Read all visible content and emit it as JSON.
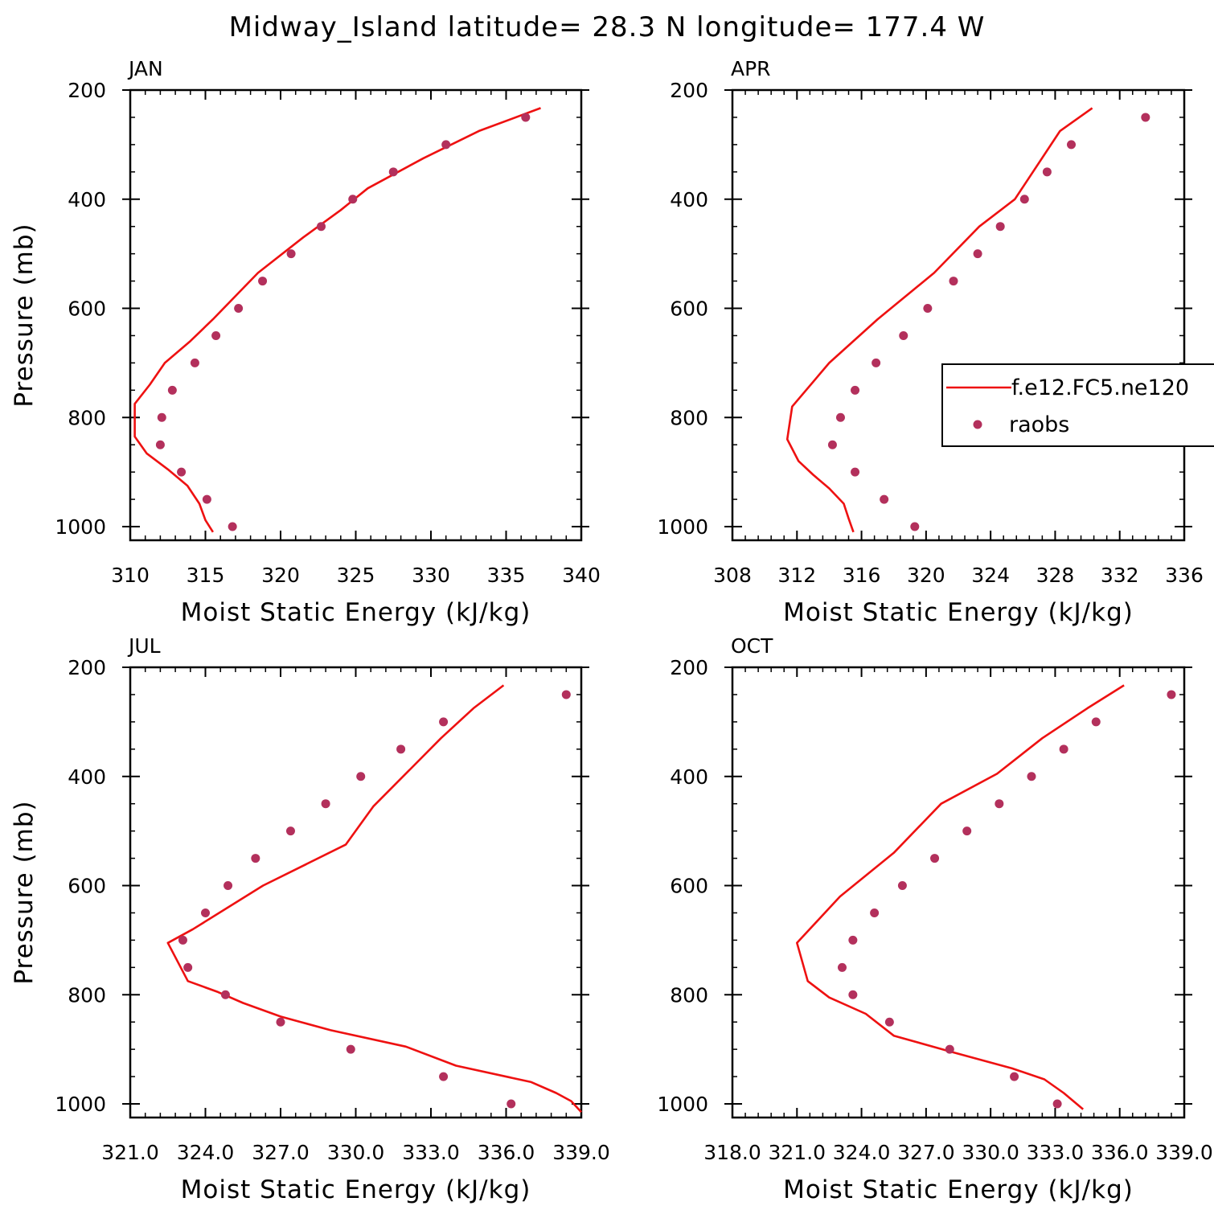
{
  "title": "Midway_Island  latitude= 28.3 N longitude= 177.4 W",
  "colors": {
    "model": "#ee1111",
    "obs": "#b3305c",
    "axis": "#000000"
  },
  "legend": {
    "model_label": "f.e12.FC5.ne120",
    "obs_label": "raobs"
  },
  "chart_data": [
    {
      "type": "line",
      "panel": "JAN",
      "xlabel": "Moist Static Energy (kJ/kg)",
      "ylabel": "Pressure (mb)",
      "xlim": [
        310,
        340
      ],
      "ylim": [
        1025,
        200
      ],
      "y_reversed": true,
      "xticks": [
        310,
        315,
        320,
        325,
        330,
        335,
        340
      ],
      "xtick_labels": [
        "310",
        "315",
        "320",
        "325",
        "330",
        "335",
        "340"
      ],
      "yticks": [
        200,
        400,
        600,
        800,
        1000
      ],
      "ytick_labels": [
        "200",
        "400",
        "600",
        "800",
        "1000"
      ],
      "series": [
        {
          "name": "f.e12.FC5.ne120",
          "kind": "line",
          "points": [
            [
              315.5,
              1010
            ],
            [
              315.0,
              988
            ],
            [
              314.6,
              958
            ],
            [
              313.8,
              925
            ],
            [
              312.5,
              895
            ],
            [
              311.1,
              866
            ],
            [
              310.3,
              835
            ],
            [
              310.3,
              805
            ],
            [
              310.3,
              775
            ],
            [
              311.3,
              740
            ],
            [
              312.3,
              700
            ],
            [
              314.0,
              660
            ],
            [
              315.5,
              620
            ],
            [
              318.5,
              535
            ],
            [
              321.5,
              470
            ],
            [
              324.0,
              420
            ],
            [
              325.8,
              380
            ],
            [
              329.5,
              325
            ],
            [
              333.2,
              275
            ],
            [
              337.3,
              233
            ]
          ]
        },
        {
          "name": "raobs",
          "kind": "scatter",
          "points": [
            [
              316.8,
              1000
            ],
            [
              315.1,
              950
            ],
            [
              313.4,
              900
            ],
            [
              312.0,
              850
            ],
            [
              312.1,
              800
            ],
            [
              312.8,
              750
            ],
            [
              314.3,
              700
            ],
            [
              315.7,
              650
            ],
            [
              317.2,
              600
            ],
            [
              318.8,
              550
            ],
            [
              320.7,
              500
            ],
            [
              322.7,
              450
            ],
            [
              324.8,
              400
            ],
            [
              327.5,
              350
            ],
            [
              331.0,
              300
            ],
            [
              336.3,
              250
            ]
          ]
        }
      ]
    },
    {
      "type": "line",
      "panel": "APR",
      "xlabel": "Moist Static Energy (kJ/kg)",
      "ylabel": "",
      "xlim": [
        308,
        336
      ],
      "ylim": [
        1025,
        200
      ],
      "y_reversed": true,
      "xticks": [
        308,
        312,
        316,
        320,
        324,
        328,
        332,
        336
      ],
      "xtick_labels": [
        "308",
        "312",
        "316",
        "320",
        "324",
        "328",
        "332",
        "336"
      ],
      "yticks": [
        200,
        400,
        600,
        800,
        1000
      ],
      "ytick_labels": [
        "200",
        "400",
        "600",
        "800",
        "1000"
      ],
      "series": [
        {
          "name": "f.e12.FC5.ne120",
          "kind": "line",
          "points": [
            [
              315.5,
              1010
            ],
            [
              315.2,
              985
            ],
            [
              314.9,
              958
            ],
            [
              314.0,
              930
            ],
            [
              313.0,
              905
            ],
            [
              312.1,
              880
            ],
            [
              311.4,
              840
            ],
            [
              311.7,
              780
            ],
            [
              314.0,
              700
            ],
            [
              317.0,
              620
            ],
            [
              320.5,
              535
            ],
            [
              323.3,
              450
            ],
            [
              325.5,
              400
            ],
            [
              328.3,
              275
            ],
            [
              330.3,
              233
            ]
          ]
        },
        {
          "name": "raobs",
          "kind": "scatter",
          "points": [
            [
              319.3,
              1000
            ],
            [
              317.4,
              950
            ],
            [
              315.6,
              900
            ],
            [
              314.2,
              850
            ],
            [
              314.7,
              800
            ],
            [
              315.6,
              750
            ],
            [
              316.9,
              700
            ],
            [
              318.6,
              650
            ],
            [
              320.1,
              600
            ],
            [
              321.7,
              550
            ],
            [
              323.2,
              500
            ],
            [
              324.6,
              450
            ],
            [
              326.1,
              400
            ],
            [
              327.5,
              350
            ],
            [
              329.0,
              300
            ],
            [
              333.6,
              250
            ]
          ]
        }
      ]
    },
    {
      "type": "line",
      "panel": "JUL",
      "xlabel": "Moist Static Energy (kJ/kg)",
      "ylabel": "Pressure (mb)",
      "xlim": [
        321.0,
        339.0
      ],
      "ylim": [
        1025,
        200
      ],
      "y_reversed": true,
      "xticks": [
        321,
        324,
        327,
        330,
        333,
        336,
        339
      ],
      "xtick_labels": [
        "321.0",
        "324.0",
        "327.0",
        "330.0",
        "333.0",
        "336.0",
        "339.0"
      ],
      "yticks": [
        200,
        400,
        600,
        800,
        1000
      ],
      "ytick_labels": [
        "200",
        "400",
        "600",
        "800",
        "1000"
      ],
      "series": [
        {
          "name": "f.e12.FC5.ne120",
          "kind": "line",
          "points": [
            [
              339.0,
              1015
            ],
            [
              338.6,
              995
            ],
            [
              338.0,
              980
            ],
            [
              337.0,
              960
            ],
            [
              334.0,
              930
            ],
            [
              332.0,
              895
            ],
            [
              329.0,
              865
            ],
            [
              327.0,
              840
            ],
            [
              325.5,
              815
            ],
            [
              324.5,
              795
            ],
            [
              323.3,
              775
            ],
            [
              322.5,
              705
            ],
            [
              323.5,
              680
            ],
            [
              326.3,
              600
            ],
            [
              329.6,
              525
            ],
            [
              330.7,
              455
            ],
            [
              333.4,
              330
            ],
            [
              334.7,
              275
            ],
            [
              335.9,
              233
            ]
          ]
        },
        {
          "name": "raobs",
          "kind": "scatter",
          "points": [
            [
              336.2,
              1000
            ],
            [
              333.5,
              950
            ],
            [
              329.8,
              900
            ],
            [
              327.0,
              850
            ],
            [
              324.8,
              800
            ],
            [
              323.3,
              750
            ],
            [
              323.1,
              700
            ],
            [
              324.0,
              650
            ],
            [
              324.9,
              600
            ],
            [
              326.0,
              550
            ],
            [
              327.4,
              500
            ],
            [
              328.8,
              450
            ],
            [
              330.2,
              400
            ],
            [
              331.8,
              350
            ],
            [
              333.5,
              300
            ],
            [
              338.4,
              250
            ]
          ]
        }
      ]
    },
    {
      "type": "line",
      "panel": "OCT",
      "xlabel": "Moist Static Energy (kJ/kg)",
      "ylabel": "",
      "xlim": [
        318.0,
        339.0
      ],
      "ylim": [
        1025,
        200
      ],
      "y_reversed": true,
      "xticks": [
        318,
        321,
        324,
        327,
        330,
        333,
        336,
        339
      ],
      "xtick_labels": [
        "318.0",
        "321.0",
        "324.0",
        "327.0",
        "330.0",
        "333.0",
        "336.0",
        "339.0"
      ],
      "yticks": [
        200,
        400,
        600,
        800,
        1000
      ],
      "ytick_labels": [
        "200",
        "400",
        "600",
        "800",
        "1000"
      ],
      "series": [
        {
          "name": "f.e12.FC5.ne120",
          "kind": "line",
          "points": [
            [
              334.3,
              1010
            ],
            [
              333.4,
              980
            ],
            [
              332.5,
              955
            ],
            [
              331.0,
              935
            ],
            [
              328.2,
              905
            ],
            [
              325.5,
              875
            ],
            [
              324.2,
              835
            ],
            [
              322.5,
              805
            ],
            [
              321.5,
              775
            ],
            [
              321.0,
              705
            ],
            [
              323.0,
              620
            ],
            [
              325.5,
              540
            ],
            [
              327.7,
              450
            ],
            [
              330.3,
              395
            ],
            [
              332.4,
              330
            ],
            [
              334.5,
              275
            ],
            [
              336.2,
              233
            ]
          ]
        },
        {
          "name": "raobs",
          "kind": "scatter",
          "points": [
            [
              333.1,
              1000
            ],
            [
              331.1,
              950
            ],
            [
              328.1,
              900
            ],
            [
              325.3,
              850
            ],
            [
              323.6,
              800
            ],
            [
              323.1,
              750
            ],
            [
              323.6,
              700
            ],
            [
              324.6,
              650
            ],
            [
              325.9,
              600
            ],
            [
              327.4,
              550
            ],
            [
              328.9,
              500
            ],
            [
              330.4,
              450
            ],
            [
              331.9,
              400
            ],
            [
              333.4,
              350
            ],
            [
              334.9,
              300
            ],
            [
              338.4,
              250
            ]
          ]
        }
      ]
    }
  ]
}
